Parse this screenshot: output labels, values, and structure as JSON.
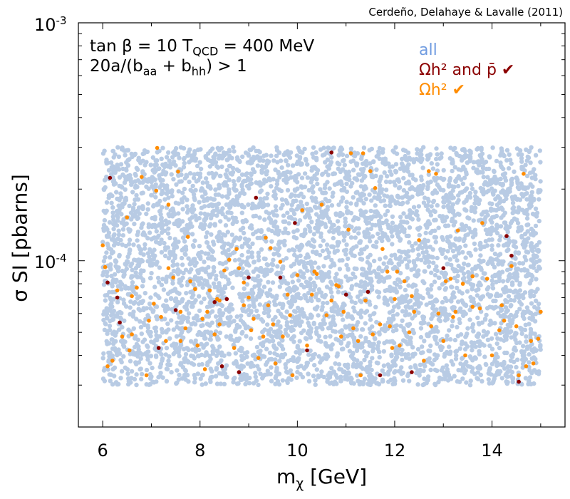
{
  "credit": "Cerdeño, Delahaye & Lavalle (2011)",
  "annotation": {
    "line1_a": "tan β = 10  T",
    "line1_sub": "QCD",
    "line1_b": " = 400 MeV",
    "line2_a": " 20a/(b",
    "line2_sub1": "aa",
    "line2_b": " + b",
    "line2_sub2": "hh",
    "line2_c": ") > 1"
  },
  "axes": {
    "xlabel_main": "m",
    "xlabel_sub": "χ",
    "xlabel_unit": " [GeV]",
    "ylabel": "σ SI [pbarns]",
    "ytick_top_base": "10",
    "ytick_top_exp": "-3",
    "ytick_mid_base": "10",
    "ytick_mid_exp": "-4"
  },
  "chart_data": {
    "type": "scatter",
    "xscale": "linear",
    "yscale": "log",
    "xlim": [
      5.5,
      15.5
    ],
    "ylim": [
      2e-05,
      0.001
    ],
    "xticks": [
      6,
      8,
      10,
      12,
      14
    ],
    "yticks": [
      0.0001,
      0.001
    ],
    "grid": false,
    "legend_position": "top-right",
    "series": [
      {
        "name": "all",
        "color": "#b8cbe4",
        "description_range": {
          "x": [
            6,
            15
          ],
          "y": [
            3e-05,
            0.0003
          ]
        },
        "count_approx": 5000
      },
      {
        "name": "Ωh² ✔",
        "color": "#ff8c00",
        "points": [
          [
            6.0,
            0.000116
          ],
          [
            6.05,
            9.4e-05
          ],
          [
            6.1,
            3.6e-05
          ],
          [
            6.2,
            3.8e-05
          ],
          [
            6.3,
            7.5e-05
          ],
          [
            6.4,
            4.8e-05
          ],
          [
            6.5,
            0.000152
          ],
          [
            6.55,
            4.2e-05
          ],
          [
            6.6,
            7.1e-05
          ],
          [
            6.7,
            7.7e-05
          ],
          [
            6.8,
            0.000225
          ],
          [
            6.9,
            3.3e-05
          ],
          [
            6.95,
            5.6e-05
          ],
          [
            7.05,
            6.6e-05
          ],
          [
            7.1,
            0.000197
          ],
          [
            7.12,
            0.000298
          ],
          [
            7.2,
            5.8e-05
          ],
          [
            7.3,
            4.6e-05
          ],
          [
            7.35,
            0.000172
          ],
          [
            7.45,
            8.5e-05
          ],
          [
            7.55,
            0.000237
          ],
          [
            7.6,
            4.6e-05
          ],
          [
            7.7,
            5.2e-05
          ],
          [
            7.75,
            0.000126
          ],
          [
            7.8,
            8.2e-05
          ],
          [
            7.9,
            7.6e-05
          ],
          [
            7.95,
            4.4e-05
          ],
          [
            8.05,
            5.7e-05
          ],
          [
            8.1,
            3.5e-05
          ],
          [
            8.2,
            7.5e-05
          ],
          [
            8.3,
            4.9e-05
          ],
          [
            8.35,
            6.9e-05
          ],
          [
            8.4,
            6.8e-05
          ],
          [
            8.5,
            9.1e-05
          ],
          [
            8.6,
            0.000101
          ],
          [
            8.7,
            4.3e-05
          ],
          [
            8.75,
            0.000112
          ],
          [
            8.8,
            9.3e-05
          ],
          [
            8.9,
            6.5e-05
          ],
          [
            9.0,
            7e-05
          ],
          [
            9.05,
            5.1e-05
          ],
          [
            9.1,
            5.7e-05
          ],
          [
            9.2,
            3.9e-05
          ],
          [
            9.3,
            4.8e-05
          ],
          [
            9.4,
            6.5e-05
          ],
          [
            9.45,
            0.000113
          ],
          [
            9.5,
            5.4e-05
          ],
          [
            9.55,
            3.7e-05
          ],
          [
            9.65,
            9.9e-05
          ],
          [
            9.7,
            4.8e-05
          ],
          [
            9.8,
            7.2e-05
          ],
          [
            9.9,
            3.3e-05
          ],
          [
            10.0,
            8.7e-05
          ],
          [
            10.1,
            0.000163
          ],
          [
            10.2,
            4.4e-05
          ],
          [
            10.3,
            7.2e-05
          ],
          [
            10.35,
            9e-05
          ],
          [
            10.4,
            8.8e-05
          ],
          [
            10.5,
            0.000172
          ],
          [
            10.6,
            5.9e-05
          ],
          [
            10.7,
            6.8e-05
          ],
          [
            10.8,
            7.9e-05
          ],
          [
            10.9,
            4.8e-05
          ],
          [
            10.95,
            6.1e-05
          ],
          [
            11.05,
            0.000135
          ],
          [
            11.1,
            0.000283
          ],
          [
            11.15,
            5.2e-05
          ],
          [
            11.3,
            3.3e-05
          ],
          [
            11.35,
            0.000283
          ],
          [
            11.4,
            6.8e-05
          ],
          [
            11.5,
            0.000238
          ],
          [
            11.55,
            4.9e-05
          ],
          [
            11.6,
            0.000202
          ],
          [
            11.7,
            5.4e-05
          ],
          [
            11.75,
            0.000112
          ],
          [
            11.85,
            9e-05
          ],
          [
            11.9,
            5.3e-05
          ],
          [
            11.95,
            4.3e-05
          ],
          [
            12.05,
            9e-05
          ],
          [
            12.1,
            4.4e-05
          ],
          [
            12.2,
            8.2e-05
          ],
          [
            12.3,
            5e-05
          ],
          [
            12.4,
            6.1e-05
          ],
          [
            12.5,
            0.000122
          ],
          [
            12.6,
            3.8e-05
          ],
          [
            12.7,
            0.000238
          ],
          [
            12.75,
            5.3e-05
          ],
          [
            12.85,
            0.000232
          ],
          [
            12.9,
            6e-05
          ],
          [
            13.0,
            4.6e-05
          ],
          [
            13.05,
            8.2e-05
          ],
          [
            13.15,
            8.4e-05
          ],
          [
            13.2,
            5.8e-05
          ],
          [
            13.3,
            0.000134
          ],
          [
            13.4,
            8e-05
          ],
          [
            13.45,
            4e-05
          ],
          [
            13.6,
            8.6e-05
          ],
          [
            13.75,
            6.3e-05
          ],
          [
            13.8,
            0.000144
          ],
          [
            13.9,
            8.4e-05
          ],
          [
            14.0,
            4e-05
          ],
          [
            14.15,
            5.1e-05
          ],
          [
            14.2,
            6.5e-05
          ],
          [
            14.25,
            5.6e-05
          ],
          [
            14.4,
            9.5e-05
          ],
          [
            14.5,
            5.3e-05
          ],
          [
            14.55,
            3.3e-05
          ],
          [
            14.65,
            0.000232
          ],
          [
            14.8,
            4.6e-05
          ],
          [
            14.85,
            3.7e-05
          ],
          [
            14.95,
            4.7e-05
          ],
          [
            15.0,
            6.1e-05
          ],
          [
            14.7,
            3.6e-05
          ],
          [
            8.4,
            5.4e-05
          ],
          [
            9.35,
            0.000125
          ],
          [
            8.15,
            6.1e-05
          ],
          [
            7.6,
            6.1e-05
          ],
          [
            6.6,
            4.9e-05
          ],
          [
            10.85,
            7.8e-05
          ],
          [
            12.0,
            6.9e-05
          ],
          [
            13.6,
            6.4e-05
          ],
          [
            11.25,
            4.6e-05
          ],
          [
            9.85,
            5.9e-05
          ],
          [
            7.35,
            9.3e-05
          ],
          [
            12.35,
            7.1e-05
          ],
          [
            13.25,
            6.1e-05
          ],
          [
            8.9,
            8.1e-05
          ]
        ]
      },
      {
        "name": "Ωh² and p̄ ✔",
        "color": "#8b0000",
        "points": [
          [
            6.15,
            0.000223
          ],
          [
            6.3,
            7e-05
          ],
          [
            6.35,
            5.5e-05
          ],
          [
            7.15,
            4.3e-05
          ],
          [
            7.5,
            6.2e-05
          ],
          [
            8.3,
            6.7e-05
          ],
          [
            8.55,
            6.9e-05
          ],
          [
            8.8,
            3.4e-05
          ],
          [
            9.0,
            8.5e-05
          ],
          [
            9.15,
            0.000184
          ],
          [
            9.65,
            8.5e-05
          ],
          [
            9.95,
            0.000144
          ],
          [
            10.2,
            4.2e-05
          ],
          [
            10.7,
            0.000285
          ],
          [
            11.0,
            7.2e-05
          ],
          [
            11.45,
            7.4e-05
          ],
          [
            11.7,
            3.3e-05
          ],
          [
            12.35,
            3.4e-05
          ],
          [
            13.0,
            9.3e-05
          ],
          [
            14.3,
            0.000127
          ],
          [
            14.4,
            0.000105
          ],
          [
            14.55,
            3.1e-05
          ],
          [
            6.1,
            8.1e-05
          ],
          [
            8.45,
            3.6e-05
          ]
        ]
      }
    ]
  }
}
